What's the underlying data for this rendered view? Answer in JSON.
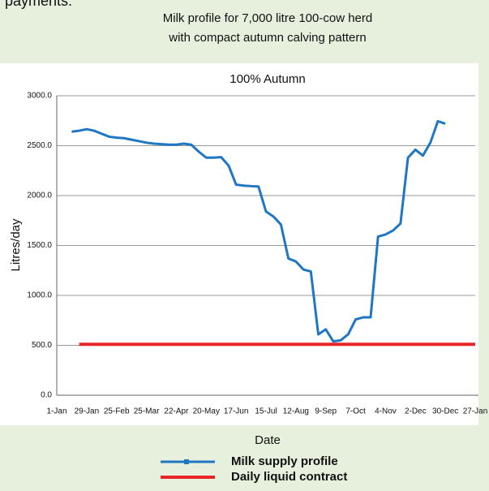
{
  "intro_text": "payments.",
  "chart_data": {
    "type": "line",
    "title": [
      "Milk profile for 7,000 litre 100-cow herd",
      "with compact autumn calving pattern"
    ],
    "subtitle": "100% Autumn",
    "xlabel": "Date",
    "ylabel": "Litres/day",
    "categories": [
      "1-Jan",
      null,
      null,
      null,
      "29-Jan",
      null,
      null,
      null,
      "25-Feb",
      null,
      null,
      null,
      "25-Mar",
      null,
      null,
      null,
      "22-Apr",
      null,
      null,
      null,
      "20-May",
      null,
      null,
      null,
      "17-Jun",
      null,
      null,
      null,
      "15-Jul",
      null,
      null,
      null,
      "12-Aug",
      null,
      null,
      null,
      "9-Sep",
      null,
      null,
      null,
      "7-Oct",
      null,
      null,
      null,
      "4-Nov",
      null,
      null,
      null,
      "2-Dec",
      null,
      null,
      null,
      "30-Dec",
      null,
      null,
      null,
      "27-Jan"
    ],
    "ylim": [
      0,
      3000
    ],
    "yticks": [
      {
        "value": 0,
        "label": "0.0"
      },
      {
        "value": 500,
        "label": "500.0"
      },
      {
        "value": 1000,
        "label": "1000.0"
      },
      {
        "value": 1500,
        "label": "1500.0"
      },
      {
        "value": 2000,
        "label": "2000.0"
      },
      {
        "value": 2500,
        "label": "2500.0"
      },
      {
        "value": 3000,
        "label": "3000.0"
      }
    ],
    "grid": true,
    "series": [
      {
        "name": "Milk supply profile",
        "color": "#1f77c4",
        "values": [
          null,
          null,
          2640,
          2650,
          2665,
          2650,
          2620,
          2590,
          2580,
          2575,
          2560,
          2545,
          2530,
          2520,
          2515,
          2510,
          2510,
          2520,
          2510,
          2440,
          2380,
          2380,
          2385,
          2300,
          2110,
          2100,
          2095,
          2090,
          1840,
          1790,
          1710,
          1370,
          1340,
          1260,
          1240,
          610,
          660,
          540,
          550,
          610,
          760,
          780,
          780,
          1590,
          1610,
          1650,
          1720,
          2380,
          2460,
          2400,
          2530,
          2745,
          2720,
          null,
          null,
          null,
          null
        ]
      },
      {
        "name": "Daily liquid contract",
        "color": "#e8262a",
        "values": [
          null,
          null,
          null,
          510,
          510,
          510,
          510,
          510,
          510,
          510,
          510,
          510,
          510,
          510,
          510,
          510,
          510,
          510,
          510,
          510,
          510,
          510,
          510,
          510,
          510,
          510,
          510,
          510,
          510,
          510,
          510,
          510,
          510,
          510,
          510,
          510,
          510,
          510,
          510,
          510,
          510,
          510,
          510,
          510,
          510,
          510,
          510,
          510,
          510,
          510,
          510,
          510,
          510,
          510,
          510,
          510,
          510
        ]
      }
    ]
  }
}
